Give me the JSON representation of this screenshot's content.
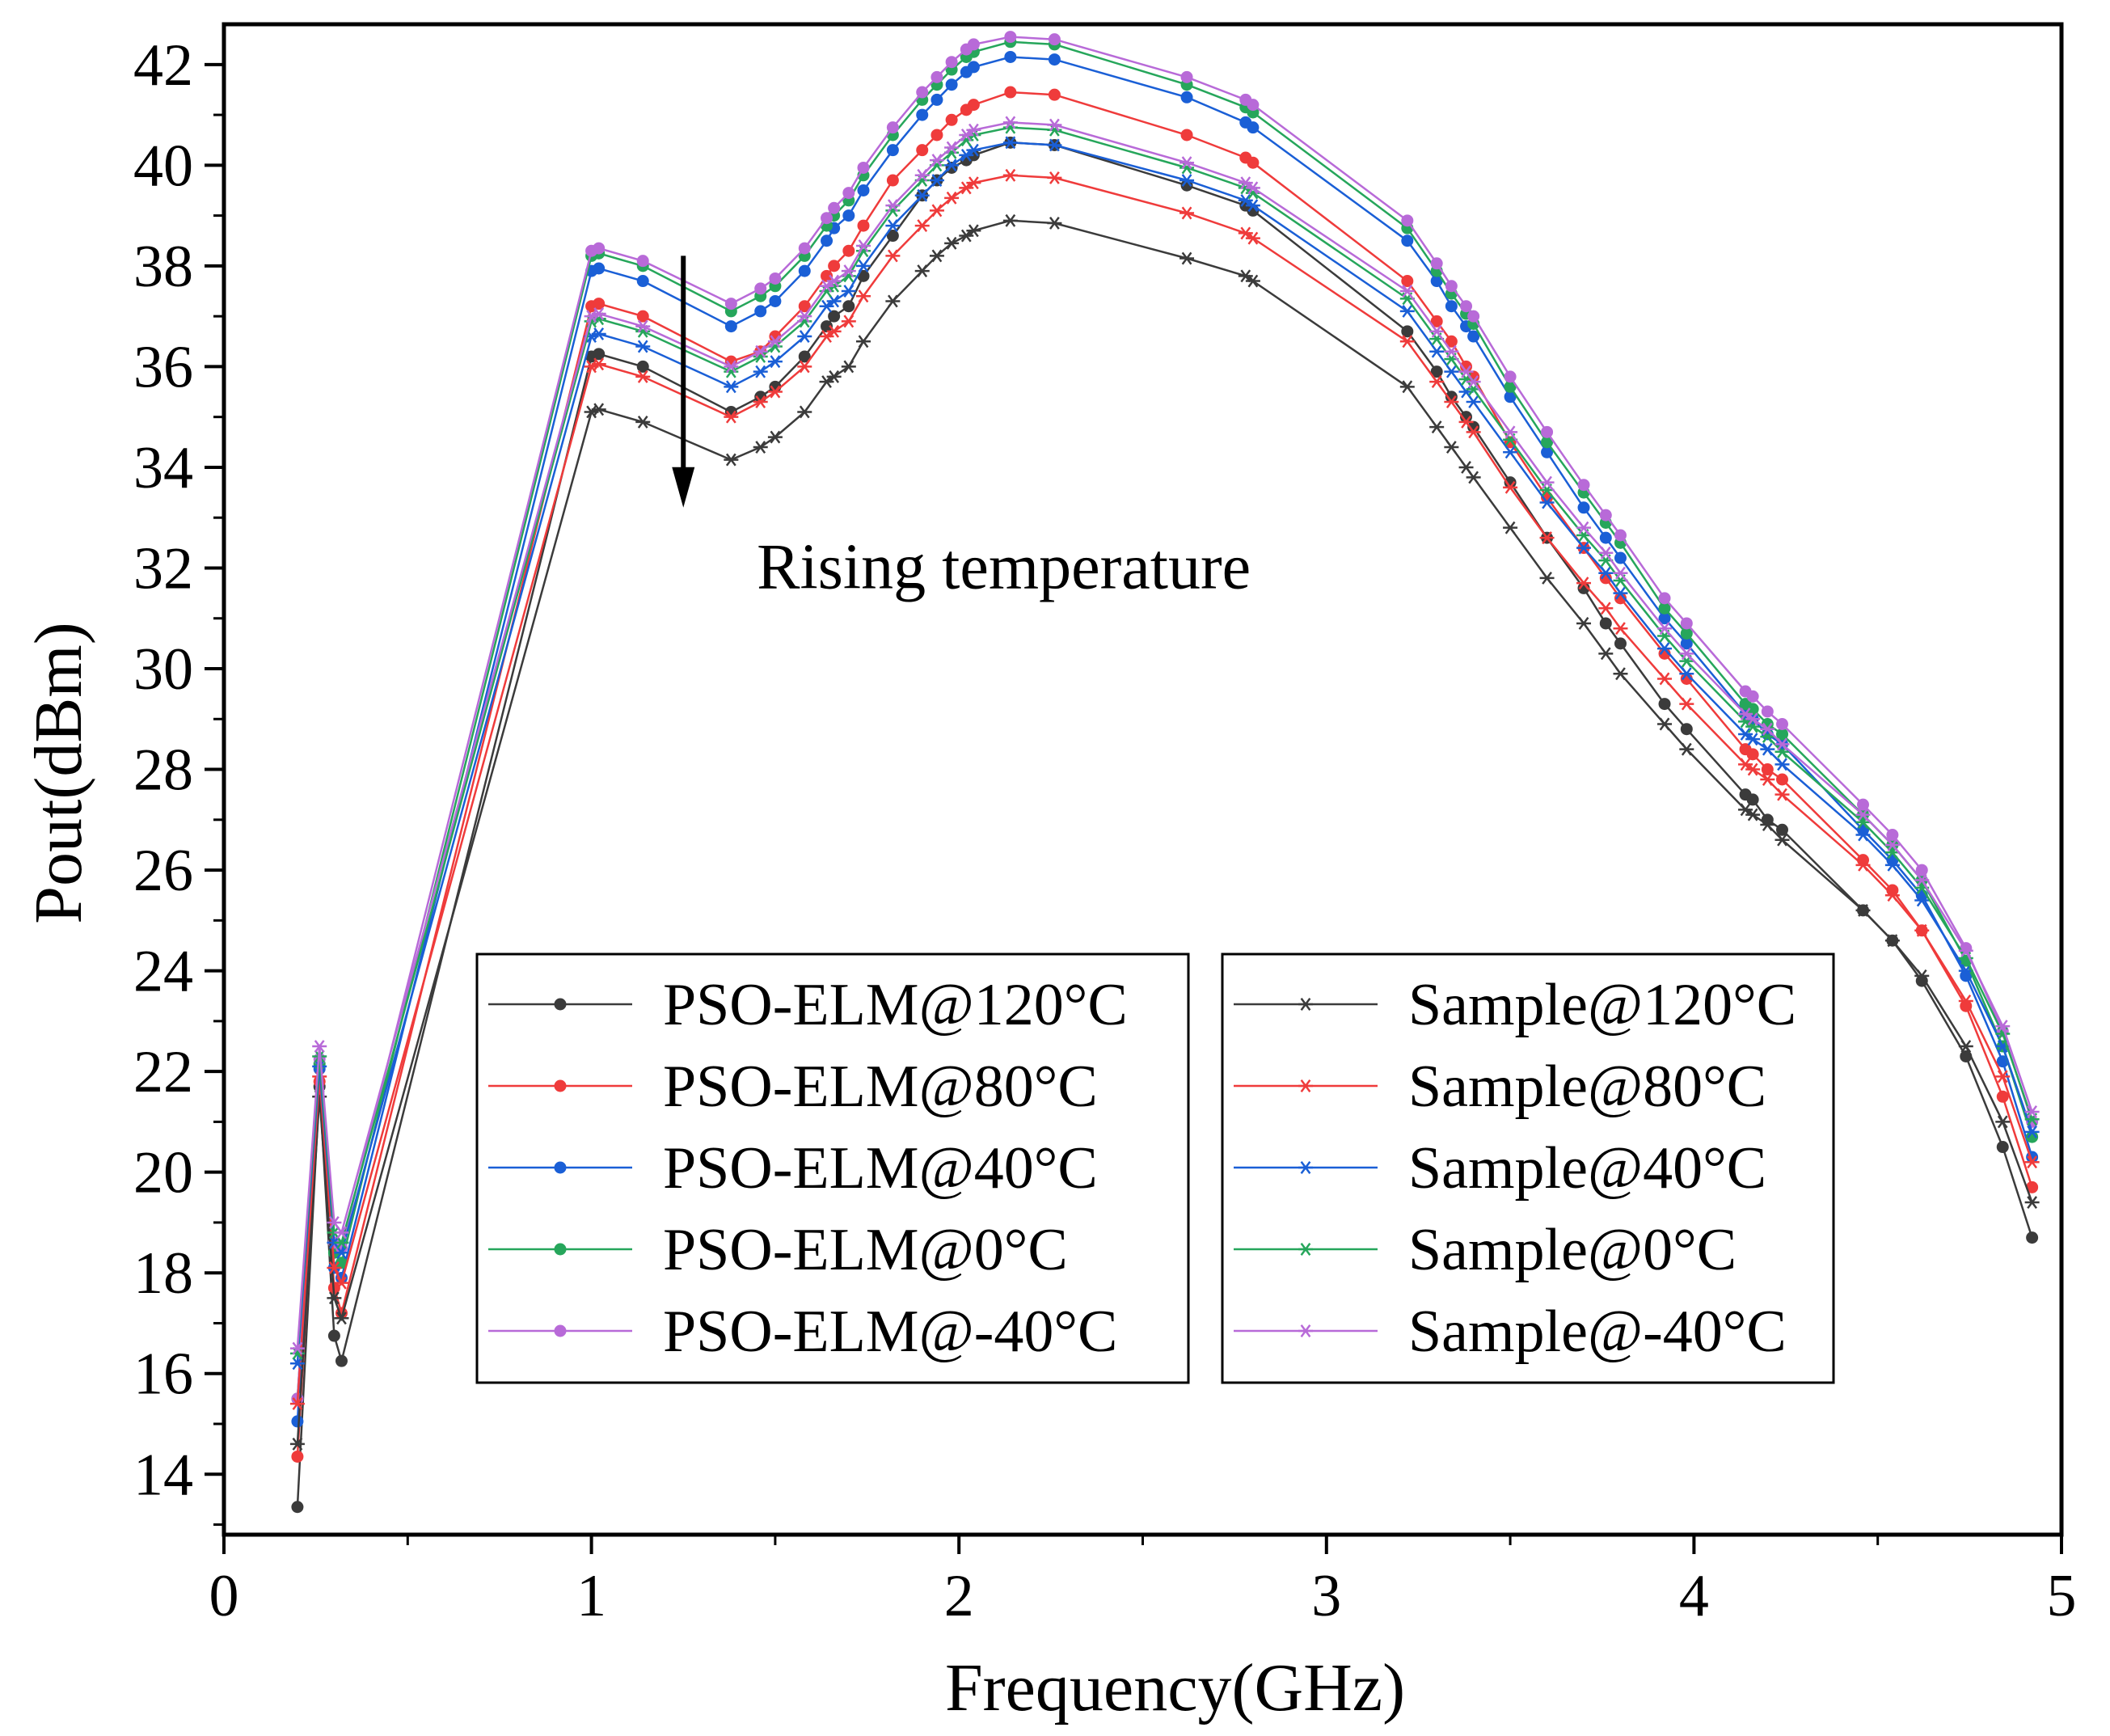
{
  "chart_data": {
    "type": "line",
    "title": "",
    "xlabel": "Frequency(GHz)",
    "ylabel": "Pout(dBm)",
    "xlim": [
      0,
      5
    ],
    "ylim": [
      12.8,
      42.8
    ],
    "xticks": [
      0,
      1,
      2,
      3,
      4,
      5
    ],
    "yticks": [
      14,
      16,
      18,
      20,
      22,
      24,
      26,
      28,
      30,
      32,
      34,
      36,
      38,
      40,
      42
    ],
    "grid": false,
    "annotation": {
      "text": "Rising temperature",
      "arrow_x": 1.25,
      "arrow_from": 38.2,
      "arrow_to": 33.2,
      "text_x": 1.45,
      "text_y": 32.0
    },
    "x": [
      0.2,
      0.26,
      0.3,
      0.32,
      1.0,
      1.02,
      1.14,
      1.38,
      1.46,
      1.5,
      1.58,
      1.64,
      1.66,
      1.7,
      1.74,
      1.82,
      1.9,
      1.94,
      1.98,
      2.02,
      2.04,
      2.14,
      2.26,
      2.62,
      2.78,
      2.8,
      3.22,
      3.3,
      3.34,
      3.38,
      3.4,
      3.5,
      3.6,
      3.7,
      3.76,
      3.8,
      3.92,
      3.98,
      4.14,
      4.16,
      4.2,
      4.24,
      4.46,
      4.54,
      4.62,
      4.74,
      4.84,
      4.92
    ],
    "series": [
      {
        "name": "PSO-ELM@120°C",
        "color": "#3b3b3b",
        "marker": "dot",
        "values": [
          13.35,
          21.7,
          16.75,
          16.25,
          36.2,
          36.25,
          36.0,
          35.1,
          35.4,
          35.6,
          36.2,
          36.8,
          37.0,
          37.2,
          37.8,
          38.6,
          39.4,
          39.7,
          39.95,
          40.1,
          40.2,
          40.45,
          40.4,
          39.6,
          39.2,
          39.1,
          36.7,
          35.9,
          35.4,
          35.0,
          34.8,
          33.7,
          32.6,
          31.6,
          30.9,
          30.5,
          29.3,
          28.8,
          27.5,
          27.4,
          27.0,
          26.8,
          25.2,
          24.6,
          23.8,
          22.3,
          20.5,
          18.7
        ]
      },
      {
        "name": "PSO-ELM@80°C",
        "color": "#ef3b3b",
        "marker": "dot",
        "values": [
          14.35,
          21.8,
          17.7,
          17.2,
          37.2,
          37.25,
          37.0,
          36.1,
          36.3,
          36.6,
          37.2,
          37.8,
          38.0,
          38.3,
          38.8,
          39.7,
          40.3,
          40.6,
          40.9,
          41.1,
          41.2,
          41.45,
          41.4,
          40.6,
          40.15,
          40.05,
          37.7,
          36.9,
          36.5,
          36.0,
          35.8,
          34.5,
          33.4,
          32.4,
          31.8,
          31.4,
          30.3,
          29.8,
          28.4,
          28.3,
          28.0,
          27.8,
          26.2,
          25.6,
          24.8,
          23.3,
          21.5,
          19.7
        ]
      },
      {
        "name": "PSO-ELM@40°C",
        "color": "#1a5fd6",
        "marker": "dot",
        "values": [
          15.05,
          22.05,
          18.1,
          17.9,
          37.9,
          37.95,
          37.7,
          36.8,
          37.1,
          37.3,
          37.9,
          38.5,
          38.75,
          39.0,
          39.5,
          40.3,
          41.0,
          41.3,
          41.6,
          41.85,
          41.95,
          42.15,
          42.1,
          41.35,
          40.85,
          40.75,
          38.5,
          37.7,
          37.2,
          36.8,
          36.6,
          35.4,
          34.3,
          33.2,
          32.6,
          32.2,
          31.0,
          30.5,
          29.1,
          29.0,
          28.7,
          28.5,
          26.8,
          26.2,
          25.5,
          23.9,
          22.2,
          20.3
        ]
      },
      {
        "name": "PSO-ELM@0°C",
        "color": "#26a65b",
        "marker": "dot",
        "values": [
          15.5,
          22.15,
          18.4,
          18.2,
          38.2,
          38.25,
          38.0,
          37.1,
          37.4,
          37.6,
          38.2,
          38.8,
          39.0,
          39.3,
          39.8,
          40.6,
          41.3,
          41.6,
          41.9,
          42.15,
          42.25,
          42.45,
          42.4,
          41.6,
          41.15,
          41.05,
          38.75,
          37.9,
          37.45,
          37.05,
          36.85,
          35.6,
          34.5,
          33.5,
          32.9,
          32.5,
          31.2,
          30.7,
          29.3,
          29.2,
          28.9,
          28.7,
          27.1,
          26.5,
          25.8,
          24.2,
          22.5,
          20.7
        ]
      },
      {
        "name": "PSO-ELM@-40°C",
        "color": "#b86ad8",
        "marker": "dot",
        "values": [
          15.5,
          22.25,
          18.6,
          18.5,
          38.3,
          38.35,
          38.1,
          37.25,
          37.55,
          37.75,
          38.35,
          38.95,
          39.15,
          39.45,
          39.95,
          40.75,
          41.45,
          41.75,
          42.05,
          42.3,
          42.4,
          42.55,
          42.5,
          41.75,
          41.3,
          41.2,
          38.9,
          38.05,
          37.6,
          37.2,
          37.0,
          35.8,
          34.7,
          33.65,
          33.05,
          32.65,
          31.4,
          30.9,
          29.55,
          29.45,
          29.15,
          28.9,
          27.3,
          26.7,
          26.0,
          24.45,
          22.8,
          21.0
        ]
      },
      {
        "name": "Sample@120°C",
        "color": "#3b3b3b",
        "marker": "star",
        "values": [
          14.6,
          21.5,
          17.5,
          17.1,
          35.1,
          35.15,
          34.9,
          34.15,
          34.4,
          34.6,
          35.1,
          35.7,
          35.8,
          36.0,
          36.5,
          37.3,
          37.9,
          38.2,
          38.45,
          38.6,
          38.7,
          38.9,
          38.85,
          38.15,
          37.8,
          37.7,
          35.6,
          34.8,
          34.4,
          34.0,
          33.8,
          32.8,
          31.8,
          30.9,
          30.3,
          29.9,
          28.9,
          28.4,
          27.2,
          27.1,
          26.9,
          26.6,
          25.2,
          24.6,
          23.9,
          22.5,
          21.0,
          19.4
        ]
      },
      {
        "name": "Sample@80°C",
        "color": "#ef3b3b",
        "marker": "star",
        "values": [
          15.4,
          21.9,
          18.1,
          17.8,
          36.0,
          36.05,
          35.8,
          35.0,
          35.3,
          35.5,
          36.0,
          36.6,
          36.7,
          36.9,
          37.4,
          38.2,
          38.8,
          39.1,
          39.35,
          39.55,
          39.65,
          39.8,
          39.75,
          39.05,
          38.65,
          38.55,
          36.5,
          35.7,
          35.3,
          34.9,
          34.7,
          33.6,
          32.6,
          31.7,
          31.2,
          30.8,
          29.8,
          29.3,
          28.1,
          28.0,
          27.8,
          27.5,
          26.1,
          25.5,
          24.8,
          23.4,
          21.9,
          20.2
        ]
      },
      {
        "name": "Sample@40°C",
        "color": "#1a5fd6",
        "marker": "star",
        "values": [
          16.2,
          22.1,
          18.6,
          18.4,
          36.6,
          36.65,
          36.4,
          35.6,
          35.9,
          36.1,
          36.6,
          37.2,
          37.3,
          37.5,
          38.0,
          38.8,
          39.4,
          39.7,
          40.0,
          40.2,
          40.3,
          40.45,
          40.4,
          39.7,
          39.3,
          39.2,
          37.1,
          36.3,
          35.9,
          35.5,
          35.3,
          34.3,
          33.3,
          32.4,
          31.9,
          31.5,
          30.4,
          29.9,
          28.7,
          28.6,
          28.4,
          28.1,
          26.7,
          26.1,
          25.4,
          24.0,
          22.5,
          20.8
        ]
      },
      {
        "name": "Sample@0°C",
        "color": "#26a65b",
        "marker": "star",
        "values": [
          16.4,
          22.3,
          18.8,
          18.6,
          36.9,
          36.95,
          36.7,
          35.9,
          36.2,
          36.4,
          36.9,
          37.5,
          37.6,
          37.8,
          38.3,
          39.1,
          39.7,
          40.0,
          40.25,
          40.5,
          40.6,
          40.75,
          40.7,
          39.95,
          39.55,
          39.45,
          37.35,
          36.55,
          36.15,
          35.75,
          35.55,
          34.55,
          33.55,
          32.65,
          32.15,
          31.75,
          30.65,
          30.15,
          28.95,
          28.85,
          28.65,
          28.35,
          26.95,
          26.35,
          25.65,
          24.25,
          22.75,
          21.05
        ]
      },
      {
        "name": "Sample@-40°C",
        "color": "#b86ad8",
        "marker": "star",
        "values": [
          16.5,
          22.5,
          19.0,
          18.8,
          37.0,
          37.05,
          36.8,
          36.0,
          36.3,
          36.5,
          37.0,
          37.6,
          37.7,
          37.9,
          38.4,
          39.2,
          39.8,
          40.1,
          40.35,
          40.6,
          40.7,
          40.85,
          40.8,
          40.05,
          39.65,
          39.55,
          37.5,
          36.7,
          36.3,
          35.9,
          35.7,
          34.7,
          33.7,
          32.8,
          32.3,
          31.9,
          30.8,
          30.3,
          29.1,
          29.0,
          28.8,
          28.5,
          27.1,
          26.5,
          25.8,
          24.4,
          22.9,
          21.2
        ]
      }
    ],
    "legend_position": "lower-center"
  }
}
